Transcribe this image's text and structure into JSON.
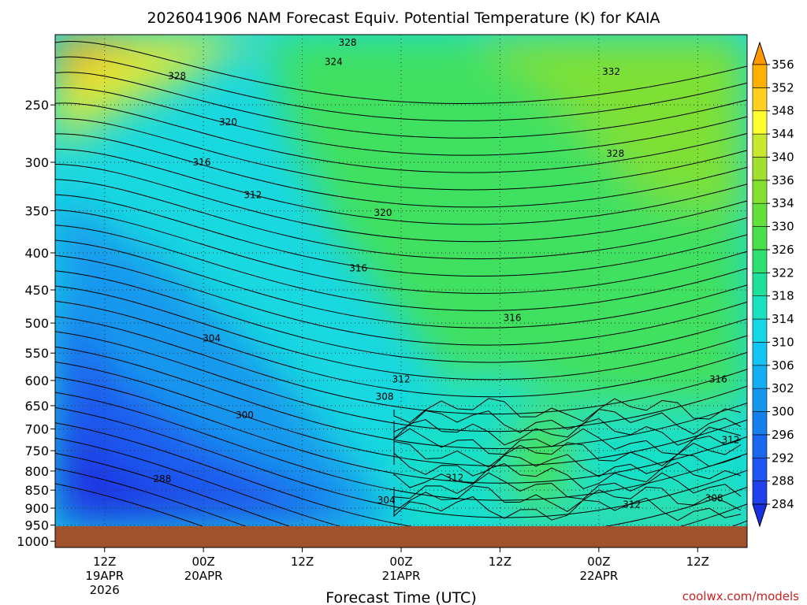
{
  "chart_data": {
    "type": "heatmap",
    "title": "2026041906 NAM Forecast Equiv. Potential Temperature (K) for KAIA",
    "xlabel": "Forecast Time (UTC)",
    "ylabel": "",
    "credit": "coolwx.com/models",
    "x_ticks": [
      {
        "hour": 6,
        "lines": [
          "12Z",
          "19APR",
          "2026"
        ]
      },
      {
        "hour": 18,
        "lines": [
          "00Z",
          "20APR"
        ]
      },
      {
        "hour": 30,
        "lines": [
          "12Z"
        ]
      },
      {
        "hour": 42,
        "lines": [
          "00Z",
          "21APR"
        ]
      },
      {
        "hour": 54,
        "lines": [
          "12Z"
        ]
      },
      {
        "hour": 66,
        "lines": [
          "00Z",
          "22APR"
        ]
      },
      {
        "hour": 78,
        "lines": [
          "12Z"
        ]
      }
    ],
    "xlim_hours": [
      0,
      84
    ],
    "y_axis": "pressure (hPa), log scale, inverted",
    "y_ticks": [
      250,
      300,
      350,
      400,
      450,
      500,
      550,
      600,
      650,
      700,
      750,
      800,
      850,
      900,
      950,
      1000
    ],
    "ylim_hpa": [
      200,
      1020
    ],
    "surface_hpa": 975,
    "colorbar": {
      "ticks": [
        284,
        288,
        292,
        296,
        300,
        302,
        306,
        310,
        314,
        318,
        322,
        326,
        330,
        334,
        336,
        340,
        344,
        348,
        352,
        356
      ],
      "colors": [
        "#1a2fe0",
        "#1f40ea",
        "#1d55f2",
        "#1a68ee",
        "#1580ec",
        "#1496ee",
        "#14aef2",
        "#14c4f4",
        "#14d8e6",
        "#18e0c0",
        "#1fe09a",
        "#2ee070",
        "#4ae04c",
        "#64e03a",
        "#84e030",
        "#a0e030",
        "#c8e830",
        "#ffff30",
        "#ffd020",
        "#ffb000",
        "#ff9800"
      ],
      "grid": "dotted"
    },
    "contour_labels": [
      {
        "value": "328",
        "hour": 35.5,
        "hpa": 205
      },
      {
        "value": "324",
        "hour": 33.8,
        "hpa": 218
      },
      {
        "value": "328",
        "hour": 14.8,
        "hpa": 228
      },
      {
        "value": "332",
        "hour": 67.5,
        "hpa": 225
      },
      {
        "value": "320",
        "hour": 21.0,
        "hpa": 264
      },
      {
        "value": "316",
        "hour": 17.8,
        "hpa": 300
      },
      {
        "value": "328",
        "hour": 68.0,
        "hpa": 292
      },
      {
        "value": "312",
        "hour": 24.0,
        "hpa": 333
      },
      {
        "value": "320",
        "hour": 39.8,
        "hpa": 352
      },
      {
        "value": "316",
        "hour": 36.8,
        "hpa": 420
      },
      {
        "value": "316",
        "hour": 55.5,
        "hpa": 492
      },
      {
        "value": "304",
        "hour": 19.0,
        "hpa": 525
      },
      {
        "value": "312",
        "hour": 42.0,
        "hpa": 598
      },
      {
        "value": "316",
        "hour": 80.5,
        "hpa": 598
      },
      {
        "value": "308",
        "hour": 40.0,
        "hpa": 632
      },
      {
        "value": "300",
        "hour": 23.0,
        "hpa": 670
      },
      {
        "value": "312",
        "hour": 82.0,
        "hpa": 725
      },
      {
        "value": "288",
        "hour": 13.0,
        "hpa": 820
      },
      {
        "value": "312",
        "hour": 48.5,
        "hpa": 817
      },
      {
        "value": "304",
        "hour": 40.2,
        "hpa": 878
      },
      {
        "value": "312",
        "hour": 70.0,
        "hpa": 890
      },
      {
        "value": "308",
        "hour": 80.0,
        "hpa": 872
      }
    ]
  }
}
